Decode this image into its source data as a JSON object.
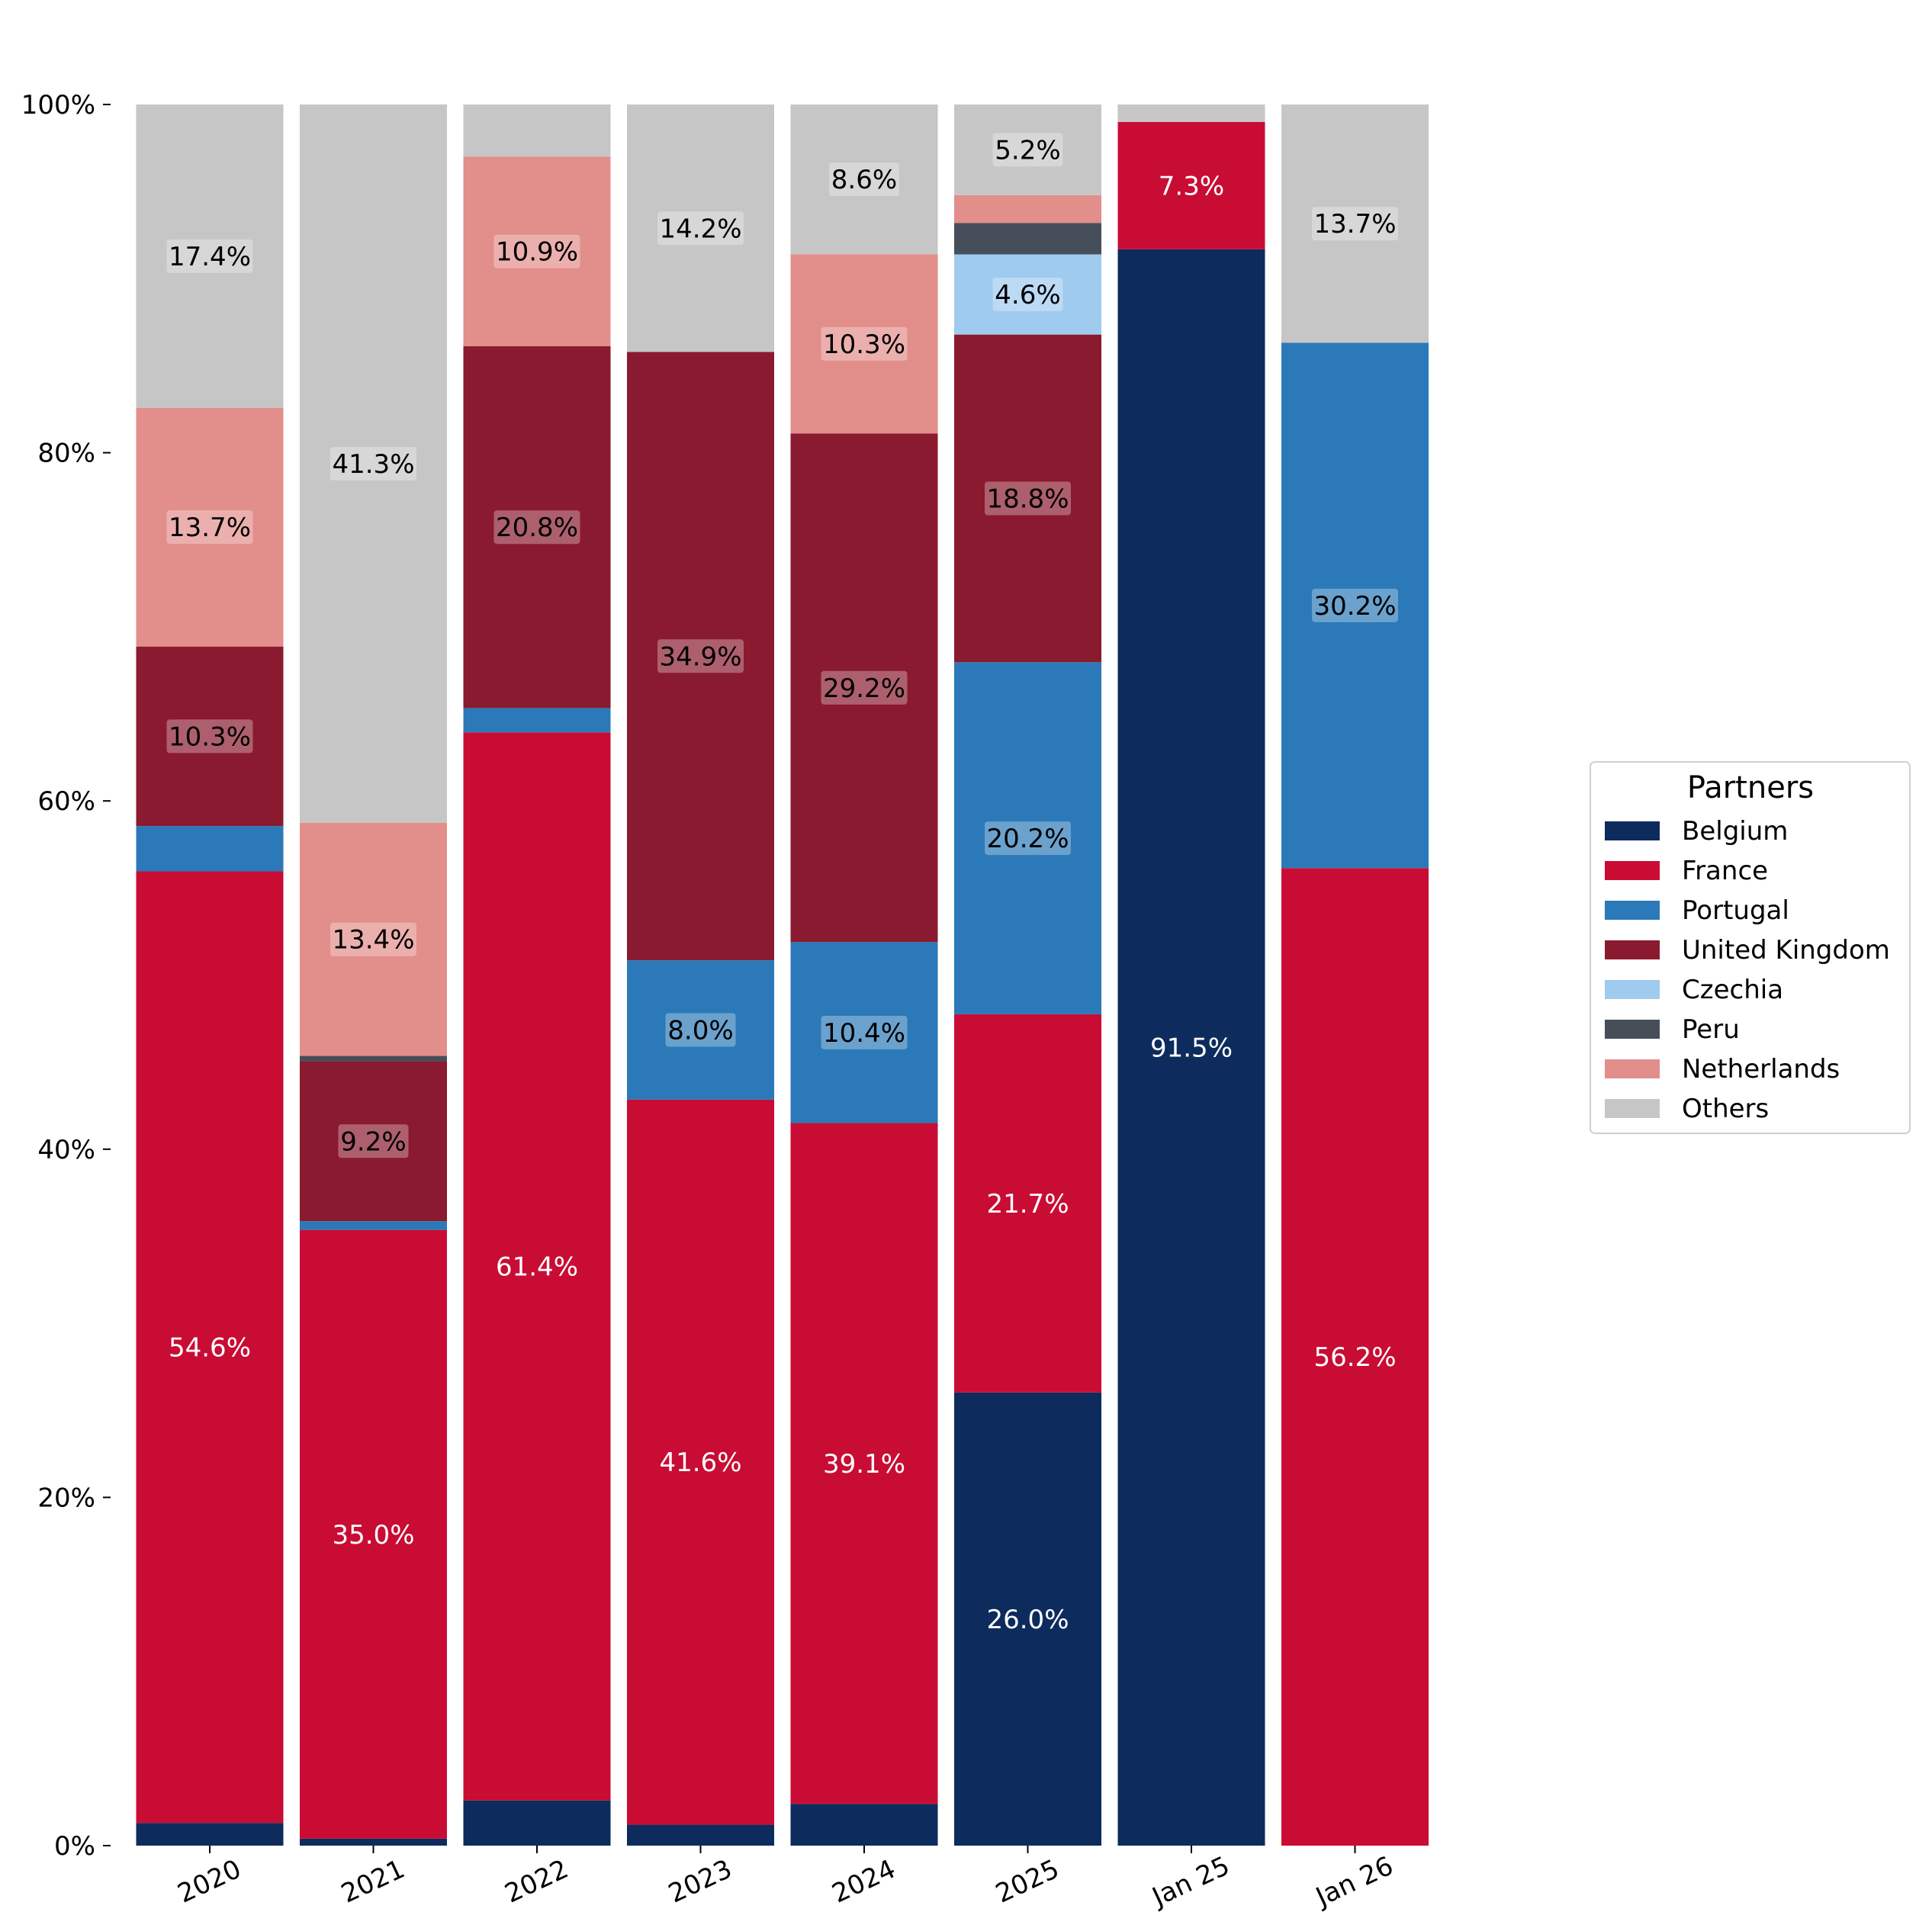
{
  "chart_data": {
    "type": "bar",
    "stacked": true,
    "normalized_percent": true,
    "title": "",
    "xlabel": "",
    "ylabel": "",
    "ylim": [
      0,
      100
    ],
    "yticks": [
      "0%",
      "20%",
      "40%",
      "60%",
      "80%",
      "100%"
    ],
    "ytick_values": [
      0,
      20,
      40,
      60,
      80,
      100
    ],
    "categories": [
      "2020",
      "2021",
      "2022",
      "2023",
      "2024",
      "2025",
      "Jan 25",
      "Jan 26"
    ],
    "legend": {
      "title": "Partners",
      "placement": "right"
    },
    "grid": false,
    "series": [
      {
        "name": "Belgium",
        "color": "#0d2b5c",
        "values": [
          1.3,
          0.4,
          2.6,
          1.2,
          2.4,
          26.0,
          91.5,
          0.0
        ],
        "labels": [
          "",
          "",
          "",
          "",
          "",
          "26.0%",
          "91.5%",
          ""
        ]
      },
      {
        "name": "France",
        "color": "#c90c34",
        "values": [
          54.6,
          35.0,
          61.4,
          41.6,
          39.1,
          21.7,
          7.3,
          56.2
        ],
        "labels": [
          "54.6%",
          "35.0%",
          "61.4%",
          "41.6%",
          "39.1%",
          "21.7%",
          "7.3%",
          "56.2%"
        ]
      },
      {
        "name": "Portugal",
        "color": "#2b79b8",
        "values": [
          2.6,
          0.5,
          1.4,
          8.0,
          10.4,
          20.2,
          0.0,
          30.2
        ],
        "labels": [
          "",
          "",
          "",
          "8.0%",
          "10.4%",
          "20.2%",
          "",
          "30.2%"
        ]
      },
      {
        "name": "United Kingdom",
        "color": "#8a1a2f",
        "values": [
          10.3,
          9.2,
          20.8,
          34.9,
          29.2,
          18.8,
          0.0,
          0.0
        ],
        "labels": [
          "10.3%",
          "9.2%",
          "20.8%",
          "34.9%",
          "29.2%",
          "18.8%",
          "",
          ""
        ]
      },
      {
        "name": "Czechia",
        "color": "#9fcbef",
        "values": [
          0.0,
          0.0,
          0.0,
          0.0,
          0.0,
          4.6,
          0.0,
          0.0
        ],
        "labels": [
          "",
          "",
          "",
          "",
          "",
          "4.6%",
          "",
          ""
        ]
      },
      {
        "name": "Peru",
        "color": "#464e59",
        "values": [
          0.0,
          0.3,
          0.0,
          0.0,
          0.0,
          1.8,
          0.0,
          0.0
        ],
        "labels": [
          "",
          "",
          "",
          "",
          "",
          "",
          "",
          ""
        ]
      },
      {
        "name": "Netherlands",
        "color": "#e28e8b",
        "values": [
          13.7,
          13.4,
          10.9,
          0.0,
          10.3,
          1.6,
          0.0,
          0.0
        ],
        "labels": [
          "13.7%",
          "13.4%",
          "10.9%",
          "",
          "10.3%",
          "",
          "",
          ""
        ]
      },
      {
        "name": "Others",
        "color": "#c6c6c6",
        "values": [
          17.4,
          41.3,
          3.0,
          14.2,
          8.6,
          5.2,
          1.0,
          13.7
        ],
        "labels": [
          "17.4%",
          "41.3%",
          "",
          "14.2%",
          "8.6%",
          "5.2%",
          "",
          "13.7%"
        ]
      }
    ]
  }
}
